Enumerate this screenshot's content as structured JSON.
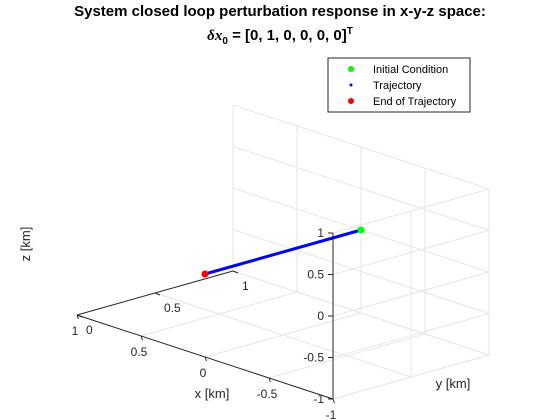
{
  "title": {
    "line1": "System closed loop perturbation response in x-y-z space:",
    "line2_prefix": "δx",
    "line2_sub": "0",
    "line2_body": " = [0, 1, 0, 0, 0, 0]",
    "line2_sup": "T"
  },
  "chart_data": {
    "type": "line3d",
    "xlabel": "x [km]",
    "ylabel": "y [km]",
    "zlabel": "z [km]",
    "xlim": [
      -1,
      1
    ],
    "ylim": [
      0,
      1
    ],
    "zlim": [
      -1,
      1
    ],
    "xticks": [
      -1,
      -0.5,
      0,
      0.5,
      1
    ],
    "yticks": [
      0,
      0.5,
      1
    ],
    "zticks": [
      -1,
      -0.5,
      0,
      0.5,
      1
    ],
    "xtick_labels": [
      "-1",
      "-0.5",
      "0",
      "0.5",
      "1"
    ],
    "ytick_labels": [
      "0",
      "0.5",
      "1"
    ],
    "ztick_labels": [
      "-1",
      "-0.5",
      "0",
      "0.5",
      "1"
    ],
    "grid": true,
    "legend_position": "top-right",
    "series": [
      {
        "name": "Initial Condition",
        "marker": "dot",
        "color": "#00ff00",
        "points": [
          {
            "x": 0,
            "y": 1,
            "z": 0
          }
        ]
      },
      {
        "name": "Trajectory",
        "marker": "line",
        "color": "#0000ff",
        "points": [
          {
            "x": 0,
            "y": 0,
            "z": 0
          },
          {
            "x": 0,
            "y": 1,
            "z": 0
          }
        ]
      },
      {
        "name": "End of Trajectory",
        "marker": "dot",
        "color": "#ff0000",
        "points": [
          {
            "x": 0,
            "y": 0,
            "z": 0
          }
        ]
      }
    ]
  }
}
